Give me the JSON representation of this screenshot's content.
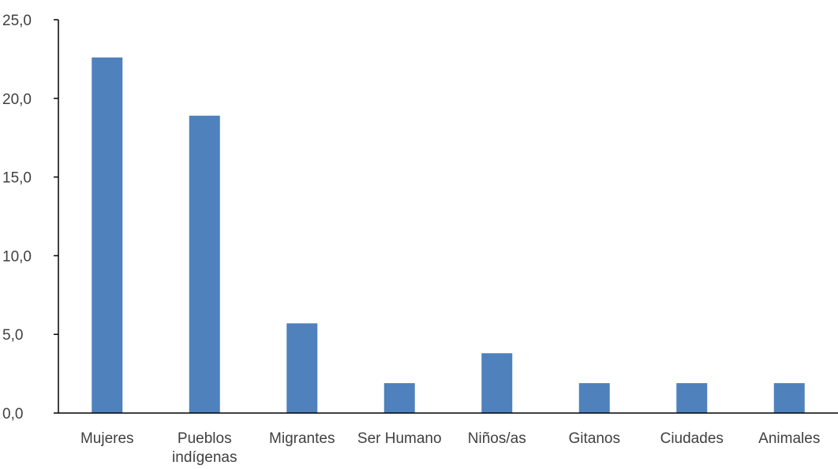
{
  "chart_data": {
    "type": "bar",
    "title": "",
    "xlabel": "",
    "ylabel": "",
    "categories": [
      "Mujeres",
      "Pueblos indígenas",
      "Migrantes",
      "Ser Humano",
      "Niños/as",
      "Gitanos",
      "Ciudades",
      "Animales"
    ],
    "category_label_lines": [
      [
        "Mujeres"
      ],
      [
        "Pueblos",
        "indígenas"
      ],
      [
        "Migrantes"
      ],
      [
        "Ser Humano"
      ],
      [
        "Niños/as"
      ],
      [
        "Gitanos"
      ],
      [
        "Ciudades"
      ],
      [
        "Animales"
      ]
    ],
    "values": [
      22.6,
      18.9,
      5.7,
      1.9,
      3.8,
      1.9,
      1.9,
      1.9
    ],
    "ylim": [
      0,
      25
    ],
    "yticks": [
      0,
      5,
      10,
      15,
      20,
      25
    ],
    "ytick_labels": [
      "0,0",
      "5,0",
      "10,0",
      "15,0",
      "20,0",
      "25,0"
    ],
    "grid": false,
    "legend": "none",
    "bar_color": "#4F81BD",
    "axis_color": "#000000"
  }
}
